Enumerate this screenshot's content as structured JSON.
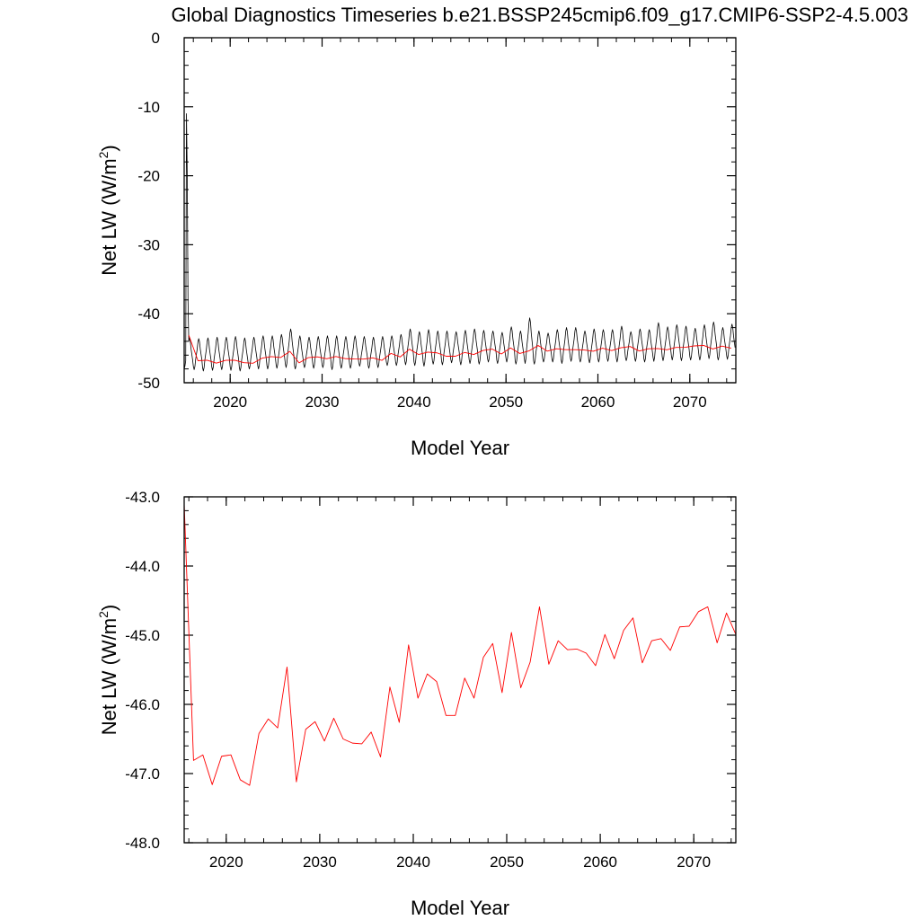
{
  "page": {
    "title": "Global Diagnostics Timeseries b.e21.BSSP245cmip6.f09_g17.CMIP6-SSP2-4.5.003"
  },
  "chart_data": [
    {
      "type": "line",
      "title": "",
      "xlabel": "Model Year",
      "ylabel": "Net LW (W/m²)",
      "ylabel_main": "Net LW (W/m",
      "ylabel_sup": "2",
      "ylabel_tail": ")",
      "xlim": [
        2015,
        2075
      ],
      "ylim": [
        -50,
        0
      ],
      "xticks": [
        2020,
        2030,
        2040,
        2050,
        2060,
        2070
      ],
      "yticks": [
        0,
        -10,
        -20,
        -30,
        -40,
        -50
      ],
      "ytick_labels": [
        "0",
        "-10",
        "-20",
        "-30",
        "-40",
        "-50"
      ],
      "grid": false,
      "series": [
        {
          "kind": "monthly",
          "color": "#000000",
          "start_year": 2015,
          "initial_values": [
            -48.0,
            -47.6,
            -46.8
          ],
          "spike_values": [
            -11.0,
            -20.0,
            -38.0,
            -44.0
          ],
          "annual_peaks": [
            -43.5,
            -43.6,
            -43.5,
            -43.4,
            -43.4,
            -43.3,
            -43.5,
            -43.4,
            -43.2,
            -43.2,
            -43.0,
            -42.2,
            -43.2,
            -43.4,
            -43.3,
            -43.2,
            -43.2,
            -43.3,
            -43.2,
            -43.3,
            -43.4,
            -43.3,
            -43.2,
            -43.0,
            -42.2,
            -42.6,
            -42.3,
            -42.5,
            -42.5,
            -42.6,
            -42.4,
            -42.2,
            -42.4,
            -42.5,
            -42.7,
            -41.9,
            -42.5,
            -40.6,
            -42.5,
            -42.8,
            -42.3,
            -42.0,
            -42.0,
            -42.5,
            -42.2,
            -42.3,
            -42.3,
            -41.8,
            -42.6,
            -42.2,
            -42.3,
            -41.3,
            -41.9,
            -41.6,
            -41.8,
            -42.1,
            -41.6,
            -41.2,
            -42.0,
            -41.5
          ],
          "annual_troughs": [
            -48.3,
            -48.1,
            -48.3,
            -48.2,
            -48.1,
            -48.2,
            -48.3,
            -48.0,
            -48.0,
            -48.0,
            -47.9,
            -47.8,
            -48.0,
            -47.8,
            -47.9,
            -47.8,
            -48.1,
            -47.9,
            -47.9,
            -47.6,
            -47.9,
            -47.8,
            -47.5,
            -47.5,
            -47.4,
            -47.5,
            -47.6,
            -47.3,
            -47.4,
            -47.1,
            -47.4,
            -47.2,
            -47.3,
            -47.0,
            -47.2,
            -47.0,
            -47.3,
            -47.2,
            -47.3,
            -47.0,
            -47.0,
            -47.2,
            -46.9,
            -47.0,
            -47.1,
            -47.0,
            -46.9,
            -47.0,
            -46.8,
            -46.9,
            -47.0,
            -46.9,
            -46.8,
            -46.7,
            -46.8,
            -46.7,
            -46.7,
            -46.5,
            -46.7,
            -46.6
          ]
        },
        {
          "kind": "annual",
          "color": "#ff0000",
          "x": [
            2015.5,
            2016.5,
            2017.5,
            2018.5,
            2019.5,
            2020.5,
            2021.5,
            2022.5,
            2023.5,
            2024.5,
            2025.5,
            2026.5,
            2027.5,
            2028.5,
            2029.5,
            2030.5,
            2031.5,
            2032.5,
            2033.5,
            2034.5,
            2035.5,
            2036.5,
            2037.5,
            2038.5,
            2039.5,
            2040.5,
            2041.5,
            2042.5,
            2043.5,
            2044.5,
            2045.5,
            2046.5,
            2047.5,
            2048.5,
            2049.5,
            2050.5,
            2051.5,
            2052.5,
            2053.5,
            2054.5,
            2055.5,
            2056.5,
            2057.5,
            2058.5,
            2059.5,
            2060.5,
            2061.5,
            2062.5,
            2063.5,
            2064.5,
            2065.5,
            2066.5,
            2067.5,
            2068.5,
            2069.5,
            2070.5,
            2071.5,
            2072.5,
            2073.5,
            2074.5
          ],
          "values": [
            -43.1,
            -46.81,
            -46.73,
            -47.16,
            -46.75,
            -46.73,
            -47.09,
            -47.17,
            -46.42,
            -46.21,
            -46.34,
            -45.46,
            -47.12,
            -46.36,
            -46.25,
            -46.53,
            -46.2,
            -46.5,
            -46.56,
            -46.57,
            -46.4,
            -46.76,
            -45.75,
            -46.26,
            -45.14,
            -45.91,
            -45.56,
            -45.67,
            -46.16,
            -46.16,
            -45.62,
            -45.91,
            -45.32,
            -45.12,
            -45.83,
            -44.96,
            -45.76,
            -45.39,
            -44.59,
            -45.42,
            -45.08,
            -45.21,
            -45.2,
            -45.26,
            -45.44,
            -44.99,
            -45.34,
            -44.93,
            -44.75,
            -45.4,
            -45.08,
            -45.05,
            -45.22,
            -44.88,
            -44.87,
            -44.66,
            -44.59,
            -45.11,
            -44.68,
            -44.99
          ]
        }
      ]
    },
    {
      "type": "line",
      "title": "",
      "xlabel": "Model Year",
      "ylabel": "Net LW (W/m²)",
      "ylabel_main": "Net LW (W/m",
      "ylabel_sup": "2",
      "ylabel_tail": ")",
      "xlim": [
        2015.5,
        2074.5
      ],
      "ylim": [
        -48.0,
        -43.0
      ],
      "xticks": [
        2020,
        2030,
        2040,
        2050,
        2060,
        2070
      ],
      "yticks": [
        -43.0,
        -44.0,
        -45.0,
        -46.0,
        -47.0,
        -48.0
      ],
      "ytick_labels": [
        "-43.0",
        "-44.0",
        "-45.0",
        "-46.0",
        "-47.0",
        "-48.0"
      ],
      "grid": false,
      "series": [
        {
          "kind": "annual",
          "color": "#ff0000",
          "x": [
            2015.5,
            2016.5,
            2017.5,
            2018.5,
            2019.5,
            2020.5,
            2021.5,
            2022.5,
            2023.5,
            2024.5,
            2025.5,
            2026.5,
            2027.5,
            2028.5,
            2029.5,
            2030.5,
            2031.5,
            2032.5,
            2033.5,
            2034.5,
            2035.5,
            2036.5,
            2037.5,
            2038.5,
            2039.5,
            2040.5,
            2041.5,
            2042.5,
            2043.5,
            2044.5,
            2045.5,
            2046.5,
            2047.5,
            2048.5,
            2049.5,
            2050.5,
            2051.5,
            2052.5,
            2053.5,
            2054.5,
            2055.5,
            2056.5,
            2057.5,
            2058.5,
            2059.5,
            2060.5,
            2061.5,
            2062.5,
            2063.5,
            2064.5,
            2065.5,
            2066.5,
            2067.5,
            2068.5,
            2069.5,
            2070.5,
            2071.5,
            2072.5,
            2073.5,
            2074.5
          ],
          "values": [
            -43.1,
            -46.81,
            -46.73,
            -47.16,
            -46.75,
            -46.73,
            -47.09,
            -47.17,
            -46.42,
            -46.21,
            -46.34,
            -45.46,
            -47.12,
            -46.36,
            -46.25,
            -46.53,
            -46.2,
            -46.5,
            -46.56,
            -46.57,
            -46.4,
            -46.76,
            -45.75,
            -46.26,
            -45.14,
            -45.91,
            -45.56,
            -45.67,
            -46.16,
            -46.16,
            -45.62,
            -45.91,
            -45.32,
            -45.12,
            -45.83,
            -44.96,
            -45.76,
            -45.39,
            -44.59,
            -45.42,
            -45.08,
            -45.21,
            -45.2,
            -45.26,
            -45.44,
            -44.99,
            -45.34,
            -44.93,
            -44.75,
            -45.4,
            -45.08,
            -45.05,
            -45.22,
            -44.88,
            -44.87,
            -44.66,
            -44.59,
            -45.11,
            -44.68,
            -44.99
          ]
        }
      ]
    }
  ]
}
